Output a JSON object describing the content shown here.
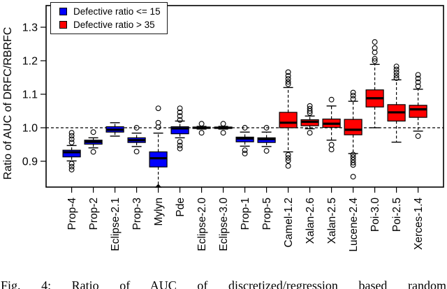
{
  "figure": {
    "caption": "Fig. 4: Ratio of AUC of discretized/regression based random"
  },
  "chart_data": {
    "type": "boxplot",
    "title": "",
    "xlabel": "",
    "ylabel": "Ratio of AUC of DRFC/RBRFC",
    "yticks": [
      0.9,
      1.0,
      1.1,
      1.2,
      1.3
    ],
    "ylim": [
      0.823,
      1.365
    ],
    "reference_line": 1.0,
    "grid": false,
    "legend": {
      "position": "top-left",
      "entries": [
        {
          "label": "Defective ratio <= 15",
          "color": "#0000ff"
        },
        {
          "label": "Defective ratio > 35",
          "color": "#ff0000"
        }
      ]
    },
    "categories": [
      "Prop-4",
      "Prop-2",
      "Eclipse-2.1",
      "Prop-3",
      "Mylyn",
      "Pde",
      "Eclipse-2.0",
      "Eclipse-3.0",
      "Prop-1",
      "Prop-5",
      "Camel-1.2",
      "Xalan-2.6",
      "Xalan-2.5",
      "Lucene-2.4",
      "Poi-3.0",
      "Poi-2.5",
      "Xerces-1.4"
    ],
    "boxes": [
      {
        "name": "Prop-4",
        "group": "defective_ratio_le_15",
        "color": "#0000ff",
        "whisker_low": 0.901,
        "q1": 0.913,
        "median": 0.927,
        "q3": 0.933,
        "whisker_high": 0.947,
        "outliers_high": [
          0.956,
          0.966,
          0.976,
          0.985
        ],
        "outliers_low": [
          0.893,
          0.884,
          0.875
        ],
        "clipped_low": false
      },
      {
        "name": "Prop-2",
        "group": "defective_ratio_le_15",
        "color": "#0000ff",
        "whisker_low": 0.94,
        "q1": 0.951,
        "median": 0.958,
        "q3": 0.963,
        "whisker_high": 0.97,
        "outliers_high": [
          0.987
        ],
        "outliers_low": [
          0.928
        ],
        "clipped_low": false
      },
      {
        "name": "Eclipse-2.1",
        "group": "defective_ratio_le_15",
        "color": "#0000ff",
        "whisker_low": 0.975,
        "q1": 0.987,
        "median": 0.994,
        "q3": 1.003,
        "whisker_high": 1.015,
        "outliers_high": [],
        "outliers_low": [],
        "clipped_low": false
      },
      {
        "name": "Prop-3",
        "group": "defective_ratio_le_15",
        "color": "#0000ff",
        "whisker_low": 0.944,
        "q1": 0.956,
        "median": 0.963,
        "q3": 0.97,
        "whisker_high": 0.984,
        "outliers_high": [
          1.0
        ],
        "outliers_low": [
          0.929
        ],
        "clipped_low": false
      },
      {
        "name": "Mylyn",
        "group": "defective_ratio_le_15",
        "color": "#0000ff",
        "whisker_low": 0.823,
        "q1": 0.883,
        "median": 0.909,
        "q3": 0.928,
        "whisker_high": 0.984,
        "outliers_high": [
          1.002,
          1.015,
          1.058
        ],
        "outliers_low": [],
        "clipped_low": true
      },
      {
        "name": "Pde",
        "group": "defective_ratio_le_15",
        "color": "#0000ff",
        "whisker_low": 0.97,
        "q1": 0.982,
        "median": 0.998,
        "q3": 1.003,
        "whisker_high": 1.02,
        "outliers_high": [
          1.023,
          1.035,
          1.046,
          1.058
        ],
        "outliers_low": [
          0.958,
          0.947,
          0.938
        ],
        "clipped_low": false
      },
      {
        "name": "Eclipse-2.0",
        "group": "defective_ratio_le_15",
        "color": "#0000ff",
        "whisker_low": 0.996,
        "q1": 0.998,
        "median": 1.0,
        "q3": 1.002,
        "whisker_high": 1.004,
        "outliers_high": [
          1.012
        ],
        "outliers_low": [
          0.985
        ],
        "clipped_low": false
      },
      {
        "name": "Eclipse-3.0",
        "group": "defective_ratio_le_15",
        "color": "#0000ff",
        "whisker_low": 0.996,
        "q1": 0.998,
        "median": 1.0,
        "q3": 1.002,
        "whisker_high": 1.004,
        "outliers_high": [
          1.012
        ],
        "outliers_low": [
          0.985
        ],
        "clipped_low": false
      },
      {
        "name": "Prop-1",
        "group": "defective_ratio_le_15",
        "color": "#0000ff",
        "whisker_low": 0.945,
        "q1": 0.958,
        "median": 0.968,
        "q3": 0.972,
        "whisker_high": 0.987,
        "outliers_high": [
          1.0
        ],
        "outliers_low": [
          0.933,
          0.923
        ],
        "clipped_low": false
      },
      {
        "name": "Prop-5",
        "group": "defective_ratio_le_15",
        "color": "#0000ff",
        "whisker_low": 0.944,
        "q1": 0.956,
        "median": 0.966,
        "q3": 0.97,
        "whisker_high": 0.987,
        "outliers_high": [
          1.0
        ],
        "outliers_low": [
          0.931
        ],
        "clipped_low": false
      },
      {
        "name": "Camel-1.2",
        "group": "defective_ratio_gt_35",
        "color": "#ff0000",
        "whisker_low": 0.928,
        "q1": 1.0,
        "median": 1.015,
        "q3": 1.046,
        "whisker_high": 1.12,
        "outliers_high": [
          1.13,
          1.137,
          1.146,
          1.155,
          1.166
        ],
        "outliers_low": [
          0.919,
          0.91,
          0.902,
          0.886
        ],
        "clipped_low": false
      },
      {
        "name": "Xalan-2.6",
        "group": "defective_ratio_gt_35",
        "color": "#ff0000",
        "whisker_low": 0.997,
        "q1": 1.006,
        "median": 1.018,
        "q3": 1.024,
        "whisker_high": 1.035,
        "outliers_high": [
          1.044,
          1.05,
          1.057,
          1.065
        ],
        "outliers_low": [
          0.985
        ],
        "clipped_low": false
      },
      {
        "name": "Xalan-2.5",
        "group": "defective_ratio_gt_35",
        "color": "#ff0000",
        "whisker_low": 0.963,
        "q1": 1.001,
        "median": 1.012,
        "q3": 1.026,
        "whisker_high": 1.065,
        "outliers_high": [
          1.084
        ],
        "outliers_low": [
          0.949,
          0.935
        ],
        "clipped_low": false
      },
      {
        "name": "Lucene-2.4",
        "group": "defective_ratio_gt_35",
        "color": "#ff0000",
        "whisker_low": 0.923,
        "q1": 0.979,
        "median": 0.994,
        "q3": 1.025,
        "whisker_high": 1.079,
        "outliers_high": [
          1.086,
          1.096,
          1.105
        ],
        "outliers_low": [
          0.92,
          0.912,
          0.904,
          0.896,
          0.889,
          0.854
        ],
        "clipped_low": false
      },
      {
        "name": "Poi-3.0",
        "group": "defective_ratio_gt_35",
        "color": "#ff0000",
        "whisker_low": 1.0,
        "q1": 1.062,
        "median": 1.088,
        "q3": 1.113,
        "whisker_high": 1.189,
        "outliers_high": [
          1.199,
          1.206,
          1.225,
          1.238,
          1.256
        ],
        "outliers_low": [],
        "clipped_low": false
      },
      {
        "name": "Poi-2.5",
        "group": "defective_ratio_gt_35",
        "color": "#ff0000",
        "whisker_low": 0.957,
        "q1": 1.02,
        "median": 1.046,
        "q3": 1.069,
        "whisker_high": 1.143,
        "outliers_high": [
          1.148,
          1.156,
          1.165,
          1.174,
          1.183
        ],
        "outliers_low": [],
        "clipped_low": false
      },
      {
        "name": "Xerces-1.4",
        "group": "defective_ratio_gt_35",
        "color": "#ff0000",
        "whisker_low": 0.99,
        "q1": 1.031,
        "median": 1.055,
        "q3": 1.067,
        "whisker_high": 1.115,
        "outliers_high": [
          1.124,
          1.136,
          1.147,
          1.158
        ],
        "outliers_low": [
          0.975
        ],
        "clipped_low": false
      }
    ]
  }
}
